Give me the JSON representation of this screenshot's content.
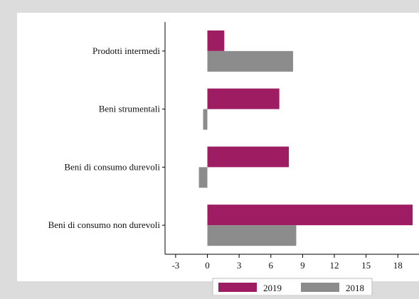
{
  "chart_data": {
    "type": "bar",
    "orientation": "horizontal",
    "categories": [
      "Prodotti intermedi",
      "Beni strumentali",
      "Beni di consumo durevoli",
      "Beni di consumo non durevoli"
    ],
    "series": [
      {
        "name": "2019",
        "color": "#9e1c62",
        "values": [
          1.6,
          6.8,
          7.7,
          19.4
        ]
      },
      {
        "name": "2018",
        "color": "#8c8c8c",
        "values": [
          8.1,
          -0.4,
          -0.8,
          8.4
        ]
      }
    ],
    "xlim": [
      -4,
      20
    ],
    "xticks": [
      -3,
      0,
      3,
      6,
      9,
      12,
      15,
      18
    ],
    "xtick_labels": [
      "-3",
      "0",
      "3",
      "6",
      "9",
      "12",
      "15",
      "18"
    ],
    "grid": false,
    "legend_position": "bottom"
  },
  "colors": {
    "background": "#dcdcdc",
    "plot_area": "#ffffff",
    "axis": "#000000"
  }
}
